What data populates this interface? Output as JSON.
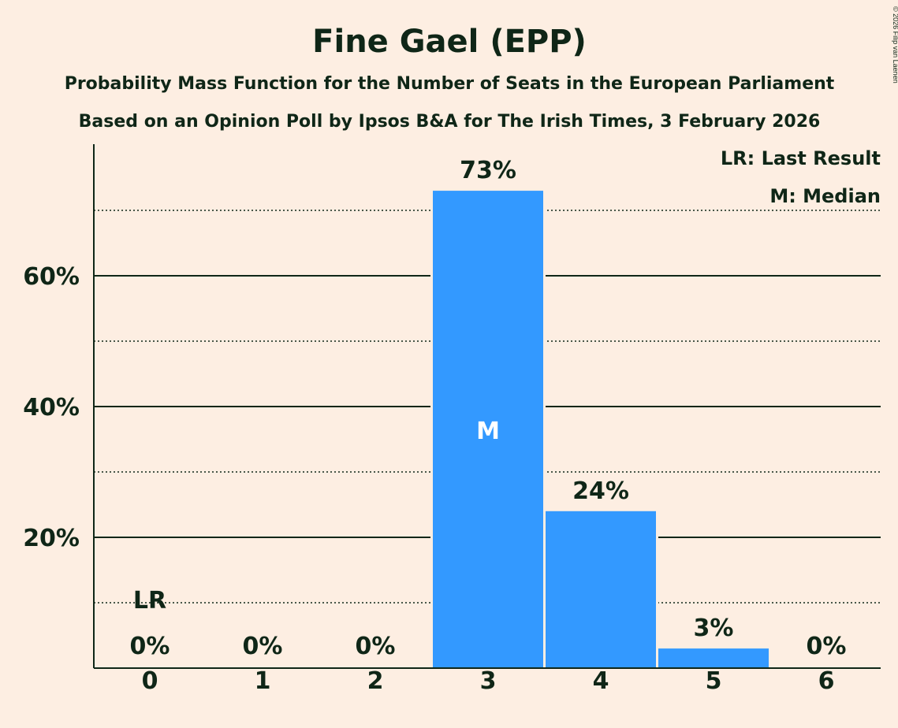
{
  "chart_data": {
    "type": "bar",
    "title": "Fine Gael (EPP)",
    "subtitle_lines": [
      "Probability Mass Function for the Number of Seats in the European Parliament",
      "Based on an Opinion Poll by Ipsos B&A for The Irish Times, 3 February 2026"
    ],
    "xlabel": "",
    "ylabel": "",
    "categories": [
      "0",
      "1",
      "2",
      "3",
      "4",
      "5",
      "6"
    ],
    "values": [
      0,
      0,
      0,
      73,
      24,
      3,
      0
    ],
    "value_labels": [
      "0%",
      "0%",
      "0%",
      "73%",
      "24%",
      "3%",
      "0%"
    ],
    "ylim": [
      0,
      80
    ],
    "y_ticks_major": [
      20,
      40,
      60
    ],
    "y_tick_labels": [
      "20%",
      "40%",
      "60%"
    ],
    "y_gridlines_dotted": [
      10,
      30,
      50,
      70
    ],
    "bar_color": "#3399FF",
    "last_result": {
      "category": "0",
      "label": "LR"
    },
    "median": {
      "category": "3",
      "label": "M"
    },
    "legend": [
      "LR: Last Result",
      "M: Median"
    ],
    "legend_position": "top-right",
    "copyright": "© 2026 Filip van Laenen"
  }
}
